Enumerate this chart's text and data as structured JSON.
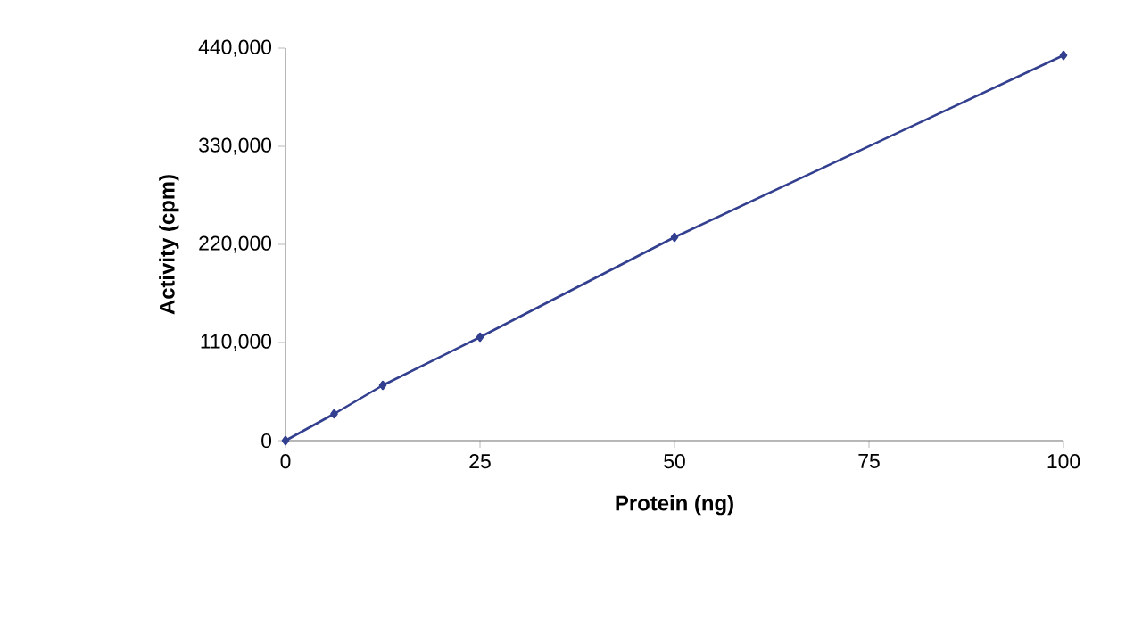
{
  "chart_data": {
    "type": "line",
    "xlabel": "Protein (ng)",
    "ylabel": "Activity (cpm)",
    "x": [
      0,
      6.25,
      12.5,
      25,
      50,
      100
    ],
    "series": [
      {
        "color": "#333f8f",
        "values": [
          0,
          30000,
          62000,
          116000,
          228000,
          432000
        ]
      }
    ],
    "xlim": [
      0,
      100
    ],
    "xticks": [
      0,
      25,
      50,
      75,
      100
    ],
    "ylim": [
      0,
      440000
    ],
    "yticks": [
      0,
      {
        "value": 110000,
        "label": "110,000"
      },
      {
        "value": 220000,
        "label": "220,000"
      },
      {
        "value": 330000,
        "label": "330,000"
      },
      {
        "value": 440000,
        "label": "440,000"
      }
    ],
    "grid": false,
    "marker": "diamond",
    "line_style": "solid"
  }
}
